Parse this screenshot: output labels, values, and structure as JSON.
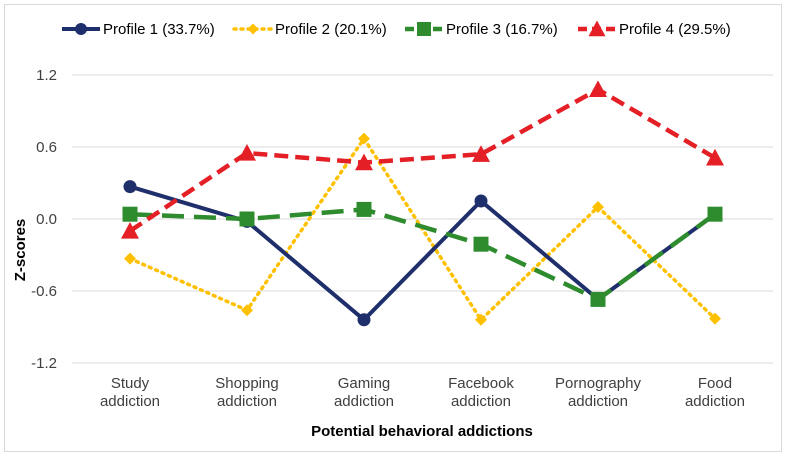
{
  "chart_data": {
    "type": "line",
    "title": "",
    "xlabel": "Potential behavioral addictions",
    "ylabel": "Z-scores",
    "ylim": [
      -1.2,
      1.2
    ],
    "yticks": [
      1.2,
      0.6,
      0.0,
      -0.6,
      -1.2
    ],
    "ytick_labels": [
      "1.2",
      "0.6",
      "0.0",
      "-0.6",
      "-1.2"
    ],
    "grid": "horizontal",
    "legend": "top",
    "categories": [
      [
        "Study",
        "addiction"
      ],
      [
        "Shopping",
        "addiction"
      ],
      [
        "Gaming",
        "addiction"
      ],
      [
        "Facebook",
        "addiction"
      ],
      [
        "Pornography",
        "addiction"
      ],
      [
        "Food",
        "addiction"
      ]
    ],
    "series": [
      {
        "name": "Profile 1 (33.7%)",
        "color": "#1f2f6b",
        "dash": "solid",
        "marker": "circle",
        "values": [
          0.27,
          -0.02,
          -0.84,
          0.15,
          -0.67,
          0.04
        ]
      },
      {
        "name": "Profile 2 (20.1%)",
        "color": "#ffc000",
        "dash": "dotted",
        "marker": "diamond",
        "values": [
          -0.33,
          -0.76,
          0.67,
          -0.84,
          0.1,
          -0.83
        ]
      },
      {
        "name": "Profile 3 (16.7%)",
        "color": "#2e8b2e",
        "dash": "dashed-long",
        "marker": "square",
        "values": [
          0.04,
          0.0,
          0.08,
          -0.21,
          -0.67,
          0.04
        ]
      },
      {
        "name": "Profile 4 (29.5%)",
        "color": "#e41f26",
        "dash": "dashed",
        "marker": "triangle",
        "values": [
          -0.1,
          0.55,
          0.47,
          0.54,
          1.08,
          0.51
        ]
      }
    ]
  }
}
